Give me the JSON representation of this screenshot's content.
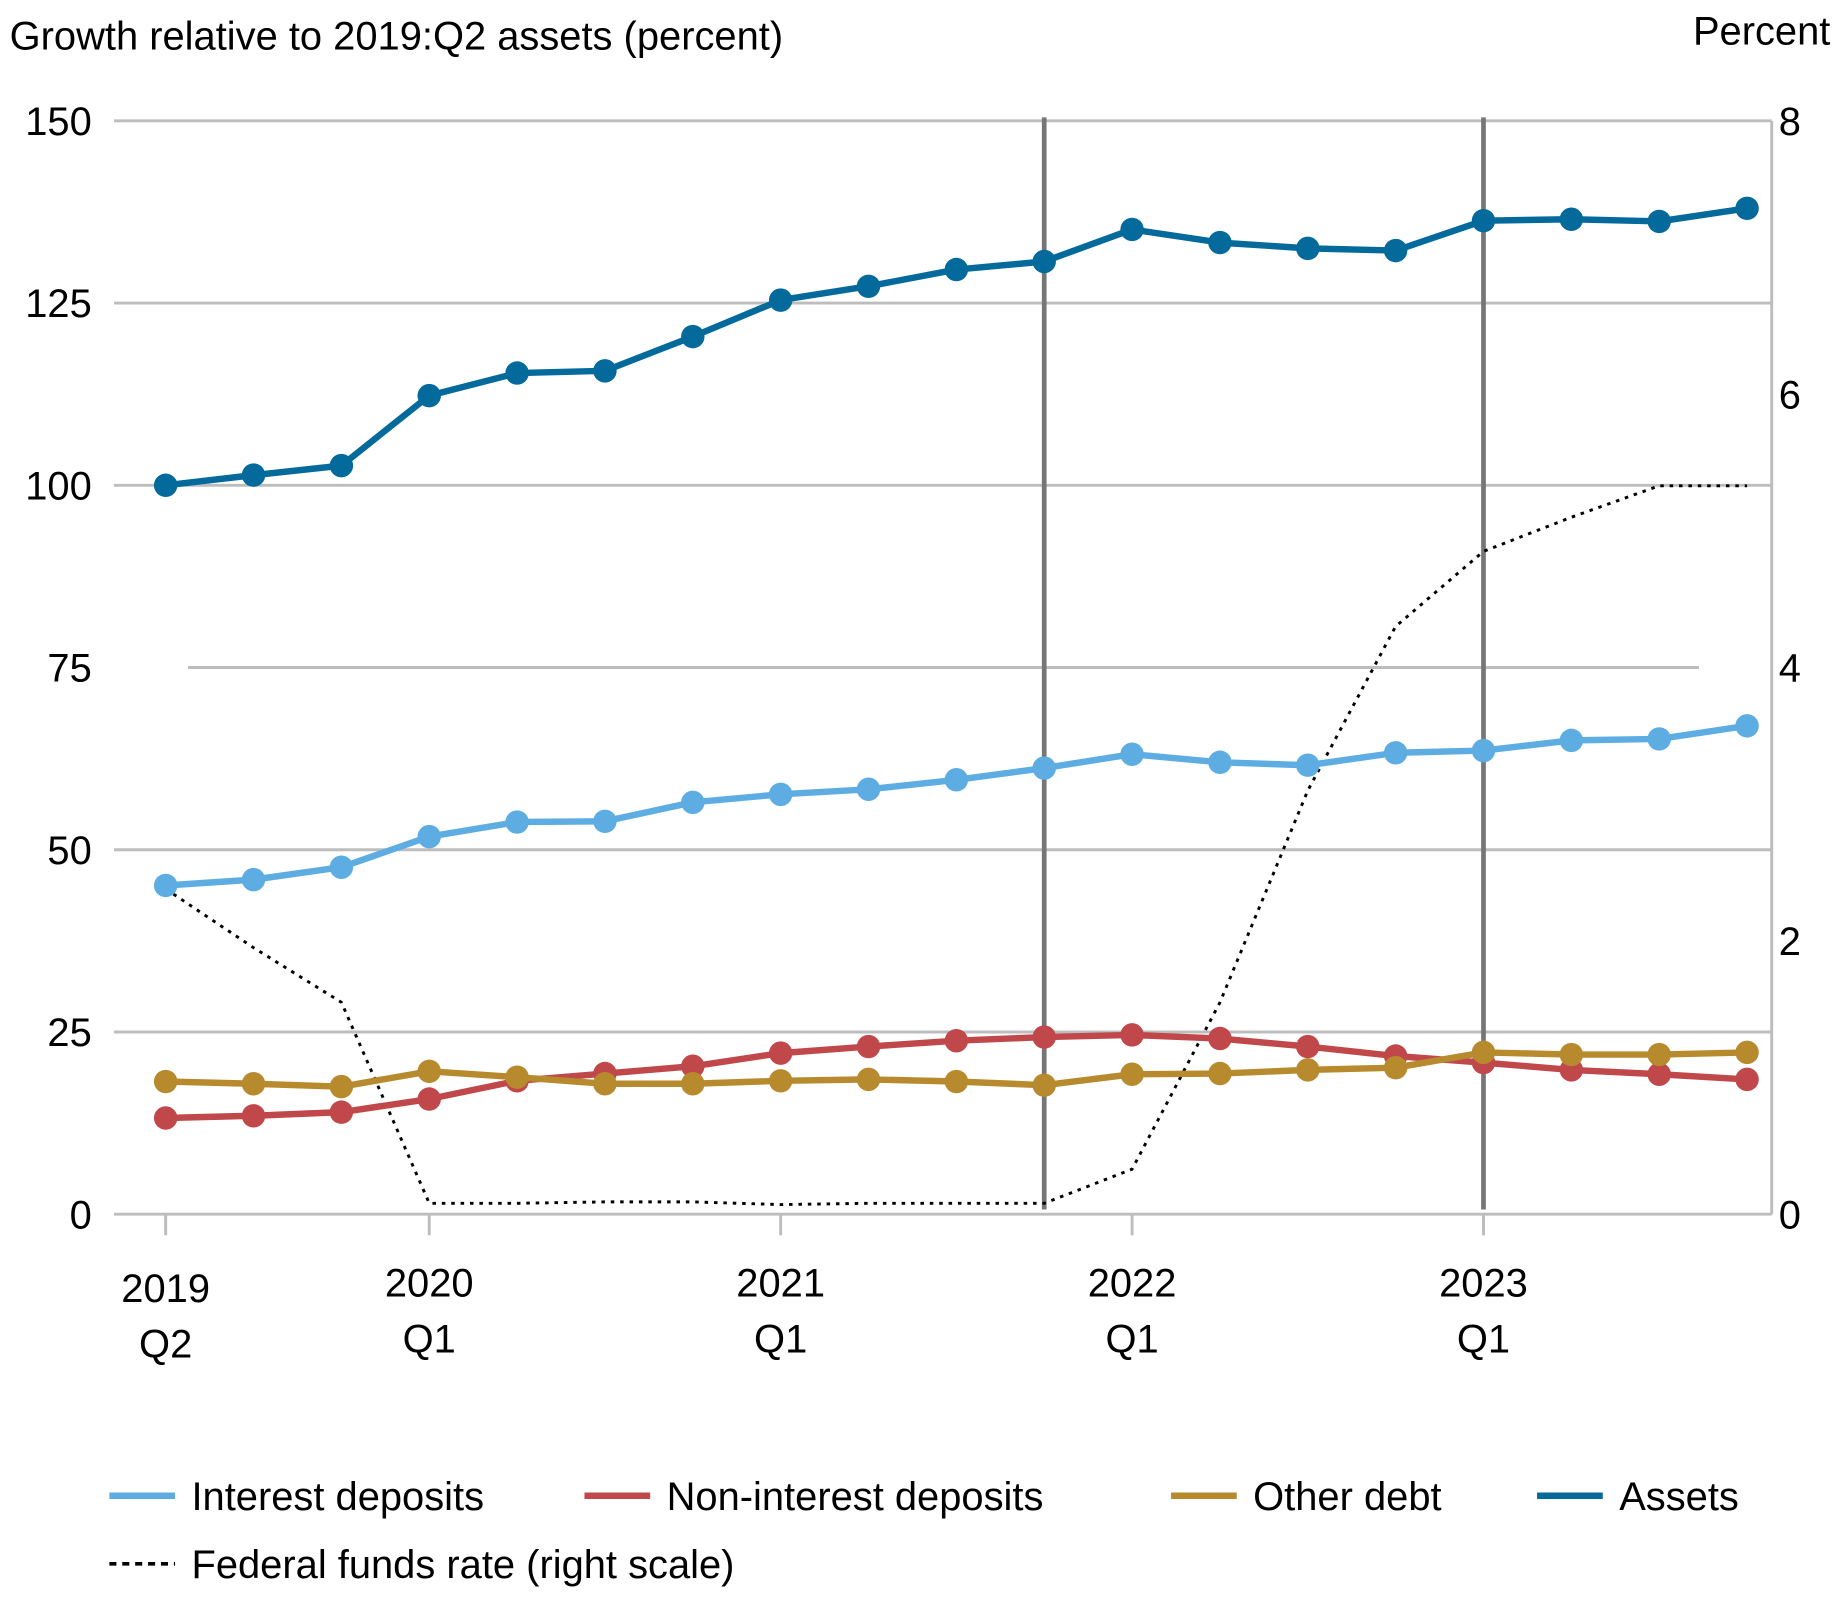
{
  "chart_data": {
    "type": "line",
    "title": "",
    "ylabel": "Growth relative to 2019:Q2 assets (percent)",
    "y2label": "Percent",
    "ylim": [
      0,
      150
    ],
    "y2lim": [
      0,
      8
    ],
    "yticks": [
      "0",
      "25",
      "50",
      "75",
      "100",
      "125",
      "150"
    ],
    "y2ticks": [
      "0",
      "2",
      "4",
      "6",
      "8"
    ],
    "x": [
      "2019Q2",
      "2019Q3",
      "2019Q4",
      "2020Q1",
      "2020Q2",
      "2020Q3",
      "2020Q4",
      "2021Q1",
      "2021Q2",
      "2021Q3",
      "2021Q4",
      "2022Q1",
      "2022Q2",
      "2022Q3",
      "2022Q4",
      "2023Q1",
      "2023Q2",
      "2023Q3",
      "2023Q4"
    ],
    "xticks": [
      {
        "at": "2019Q2",
        "line1": "2019",
        "line2": "Q2"
      },
      {
        "at": "2020Q1",
        "line1": "2020",
        "line2": "Q1"
      },
      {
        "at": "2021Q1",
        "line1": "2021",
        "line2": "Q1"
      },
      {
        "at": "2022Q1",
        "line1": "2022",
        "line2": "Q1"
      },
      {
        "at": "2023Q1",
        "line1": "2023",
        "line2": "Q1"
      }
    ],
    "vertical_markers": [
      "2021Q4",
      "2023Q1"
    ],
    "grid": true,
    "legend_placement": "bottom",
    "series": [
      {
        "name": "Interest deposits",
        "color": "#5dade2",
        "axis": "left",
        "style": "solid-markers",
        "values": [
          45.1,
          45.9,
          47.6,
          51.8,
          53.8,
          53.9,
          56.5,
          57.6,
          58.3,
          59.6,
          61.2,
          63.1,
          62.0,
          61.6,
          63.3,
          63.6,
          65.0,
          65.2,
          67.0
        ]
      },
      {
        "name": "Non-interest deposits",
        "color": "#c0474a",
        "axis": "left",
        "style": "solid-markers",
        "values": [
          13.2,
          13.5,
          14.0,
          15.8,
          18.3,
          19.3,
          20.3,
          22.1,
          23.0,
          23.8,
          24.3,
          24.6,
          24.1,
          23.0,
          21.7,
          20.8,
          19.8,
          19.2,
          18.5
        ]
      },
      {
        "name": "Other debt",
        "color": "#b88a2e",
        "axis": "left",
        "style": "solid-markers",
        "values": [
          18.2,
          17.9,
          17.5,
          19.6,
          18.8,
          17.9,
          17.9,
          18.3,
          18.5,
          18.2,
          17.7,
          19.2,
          19.3,
          19.8,
          20.1,
          22.2,
          21.9,
          21.9,
          22.2
        ]
      },
      {
        "name": "Assets",
        "color": "#046a9c",
        "axis": "left",
        "style": "solid-markers",
        "values": [
          100,
          101.4,
          102.7,
          112.3,
          115.4,
          115.7,
          120.4,
          125.4,
          127.3,
          129.6,
          130.7,
          135.1,
          133.3,
          132.5,
          132.2,
          136.3,
          136.5,
          136.2,
          138.0
        ]
      },
      {
        "name": "Federal funds rate (right scale)",
        "color": "#000000",
        "axis": "right",
        "style": "dotted",
        "values": [
          2.38,
          1.95,
          1.55,
          0.08,
          0.08,
          0.09,
          0.09,
          0.07,
          0.08,
          0.08,
          0.08,
          0.33,
          1.55,
          3.1,
          4.3,
          4.85,
          5.1,
          5.33,
          5.33
        ]
      }
    ]
  }
}
